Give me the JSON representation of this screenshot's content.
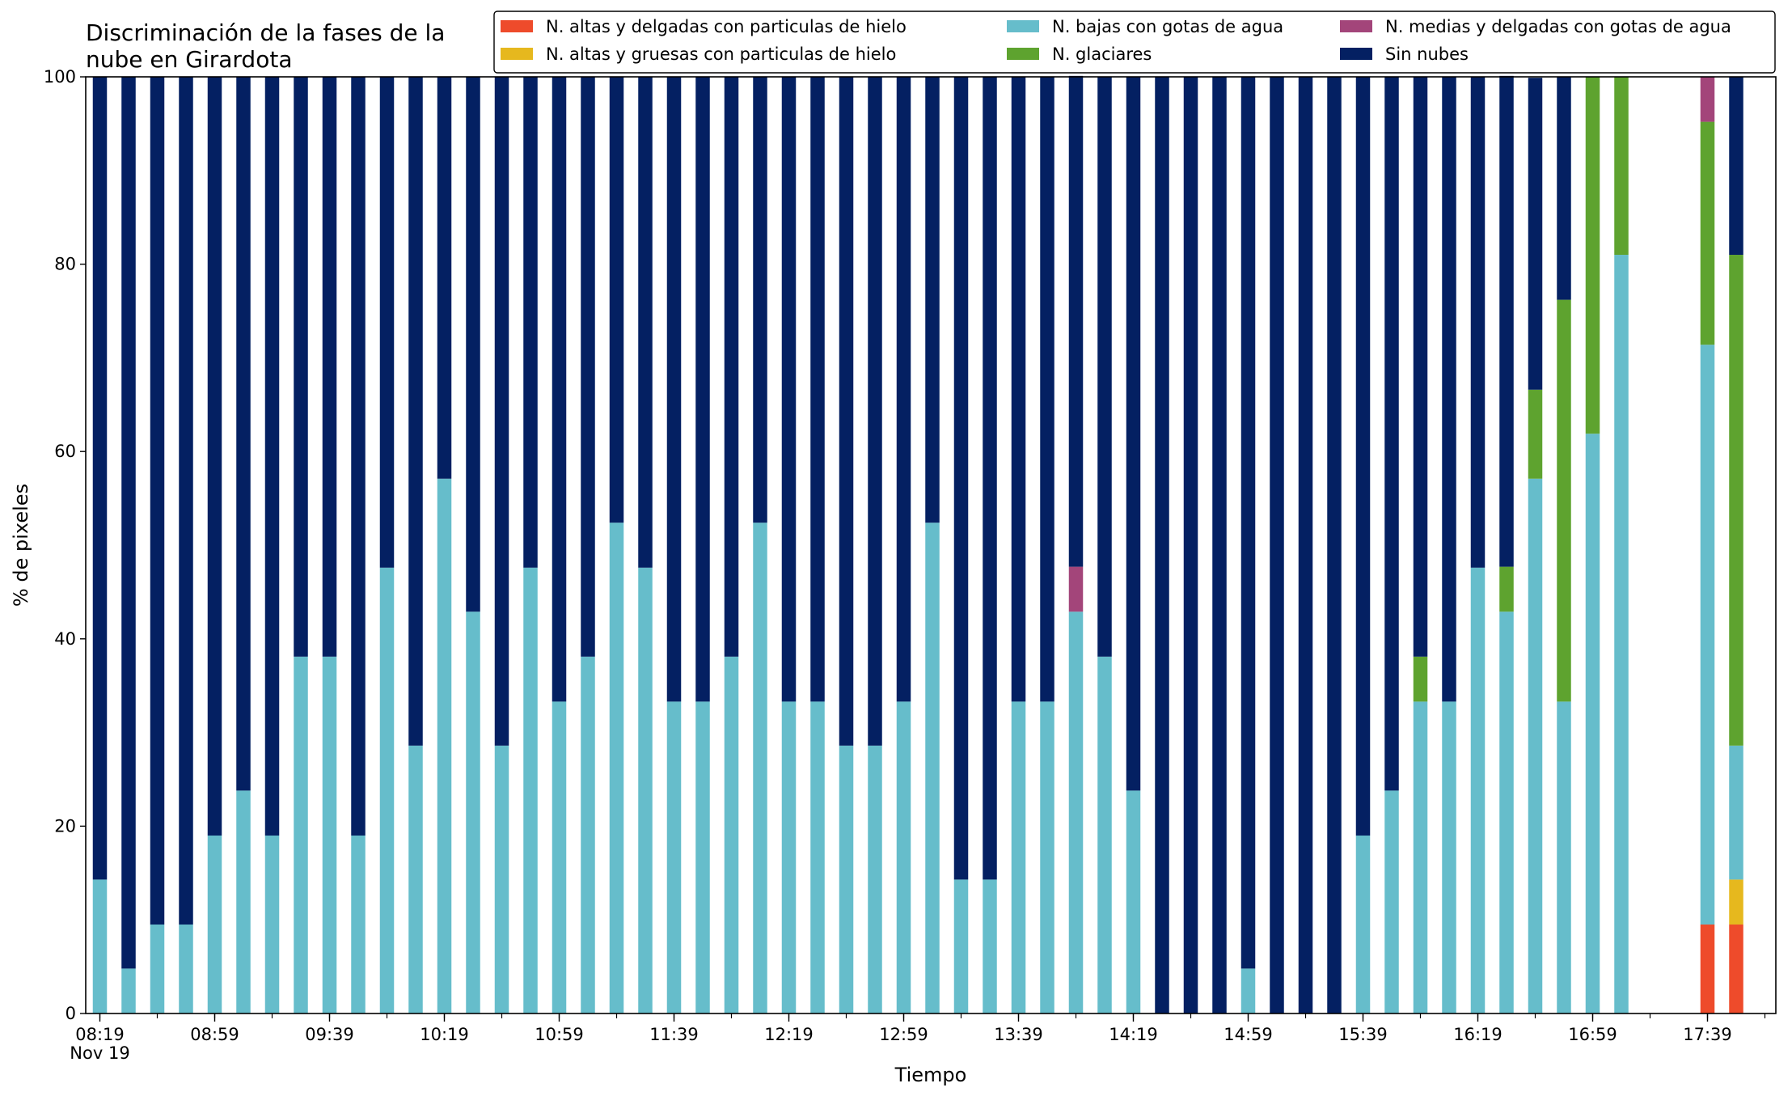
{
  "chart_data": {
    "type": "bar",
    "stacked": true,
    "title": [
      "Discriminación de la fases de la",
      "nube en Girardota"
    ],
    "xlabel": "Tiempo",
    "ylabel": "% de pixeles",
    "ylim": [
      0,
      100
    ],
    "yticks": [
      0,
      20,
      40,
      60,
      80,
      100
    ],
    "grid": false,
    "legend_position": "top-right",
    "x_start_date_label": "Nov 19",
    "x_tick_labels": [
      "08:19",
      "08:59",
      "09:39",
      "10:19",
      "10:59",
      "11:39",
      "12:19",
      "12:59",
      "13:39",
      "14:19",
      "14:59",
      "15:39",
      "16:19",
      "16:59",
      "17:39"
    ],
    "times": [
      "08:19",
      "08:29",
      "08:39",
      "08:49",
      "08:59",
      "09:09",
      "09:19",
      "09:29",
      "09:39",
      "09:49",
      "09:59",
      "10:09",
      "10:19",
      "10:29",
      "10:39",
      "10:49",
      "10:59",
      "11:09",
      "11:19",
      "11:29",
      "11:39",
      "11:49",
      "11:59",
      "12:09",
      "12:19",
      "12:29",
      "12:39",
      "12:49",
      "12:59",
      "13:09",
      "13:19",
      "13:29",
      "13:39",
      "13:49",
      "13:59",
      "14:09",
      "14:19",
      "14:29",
      "14:39",
      "14:49",
      "14:59",
      "15:09",
      "15:19",
      "15:29",
      "15:39",
      "15:49",
      "15:59",
      "16:09",
      "16:19",
      "16:29",
      "16:39",
      "16:49",
      "16:59",
      "17:09",
      "17:39",
      "17:49"
    ],
    "series": [
      {
        "name": "N. altas y delgadas con particulas de hielo",
        "color": "#ee4b2b",
        "values": [
          0,
          0,
          0,
          0,
          0,
          0,
          0,
          0,
          0,
          0,
          0,
          0,
          0,
          0,
          0,
          0,
          0,
          0,
          0,
          0,
          0,
          0,
          0,
          0,
          0,
          0,
          0,
          0,
          0,
          0,
          0,
          0,
          0,
          0,
          0,
          0,
          0,
          0,
          0,
          0,
          0,
          0,
          0,
          0,
          0,
          0,
          0,
          0,
          0,
          0,
          0,
          0,
          0,
          0,
          9.5,
          9.5
        ]
      },
      {
        "name": "N. altas y gruesas con particulas de hielo",
        "color": "#e6b81e",
        "values": [
          0,
          0,
          0,
          0,
          0,
          0,
          0,
          0,
          0,
          0,
          0,
          0,
          0,
          0,
          0,
          0,
          0,
          0,
          0,
          0,
          0,
          0,
          0,
          0,
          0,
          0,
          0,
          0,
          0,
          0,
          0,
          0,
          0,
          0,
          0,
          0,
          0,
          0,
          0,
          0,
          0,
          0,
          0,
          0,
          0,
          0,
          0,
          0,
          0,
          0,
          0,
          0,
          0,
          0,
          0,
          4.8
        ]
      },
      {
        "name": "N. bajas con gotas de agua",
        "color": "#66bdcb",
        "values": [
          14.3,
          4.8,
          9.5,
          9.5,
          19,
          23.8,
          19,
          38.1,
          38.1,
          19,
          47.6,
          28.6,
          57.1,
          42.9,
          28.6,
          47.6,
          33.3,
          38.1,
          52.4,
          47.6,
          33.3,
          33.3,
          38.1,
          52.4,
          33.3,
          33.3,
          28.6,
          28.6,
          33.3,
          52.4,
          14.3,
          14.3,
          33.3,
          33.3,
          42.9,
          38.1,
          23.8,
          0,
          0,
          0,
          4.8,
          0,
          0,
          0,
          19,
          23.8,
          33.3,
          33.3,
          47.6,
          42.9,
          57.1,
          33.3,
          61.9,
          81,
          61.9,
          14.3
        ]
      },
      {
        "name": "N. glaciares",
        "color": "#5ea32f",
        "values": [
          0,
          0,
          0,
          0,
          0,
          0,
          0,
          0,
          0,
          0,
          0,
          0,
          0,
          0,
          0,
          0,
          0,
          0,
          0,
          0,
          0,
          0,
          0,
          0,
          0,
          0,
          0,
          0,
          0,
          0,
          0,
          0,
          0,
          0,
          0,
          0,
          0,
          0,
          0,
          0,
          0,
          0,
          0,
          0,
          0,
          0,
          4.8,
          0,
          0,
          4.8,
          9.5,
          42.9,
          38.1,
          19,
          23.8,
          52.4
        ]
      },
      {
        "name": "N. medias y delgadas con gotas de agua",
        "color": "#a3457a",
        "values": [
          0,
          0,
          0,
          0,
          0,
          0,
          0,
          0,
          0,
          0,
          0,
          0,
          0,
          0,
          0,
          0,
          0,
          0,
          0,
          0,
          0,
          0,
          0,
          0,
          0,
          0,
          0,
          0,
          0,
          0,
          0,
          0,
          0,
          0,
          4.8,
          0,
          0,
          0,
          0,
          0,
          0,
          0,
          0,
          0,
          0,
          0,
          0,
          0,
          0,
          0,
          0,
          0,
          0,
          0,
          4.8,
          0
        ]
      },
      {
        "name": "Sin nubes",
        "color": "#042062",
        "values": [
          85.7,
          95.2,
          90.5,
          90.5,
          81,
          76.2,
          81,
          61.9,
          61.9,
          81,
          52.4,
          71.4,
          42.9,
          57.1,
          71.4,
          52.4,
          66.7,
          61.9,
          47.6,
          52.4,
          66.7,
          66.7,
          61.9,
          47.6,
          66.7,
          66.7,
          71.4,
          71.4,
          66.7,
          47.6,
          85.7,
          85.7,
          66.7,
          66.7,
          52.4,
          61.9,
          76.2,
          100,
          100,
          100,
          95.2,
          100,
          100,
          100,
          81,
          76.2,
          61.9,
          66.7,
          52.4,
          52.4,
          33.3,
          23.8,
          0,
          0,
          0,
          19
        ]
      }
    ]
  }
}
